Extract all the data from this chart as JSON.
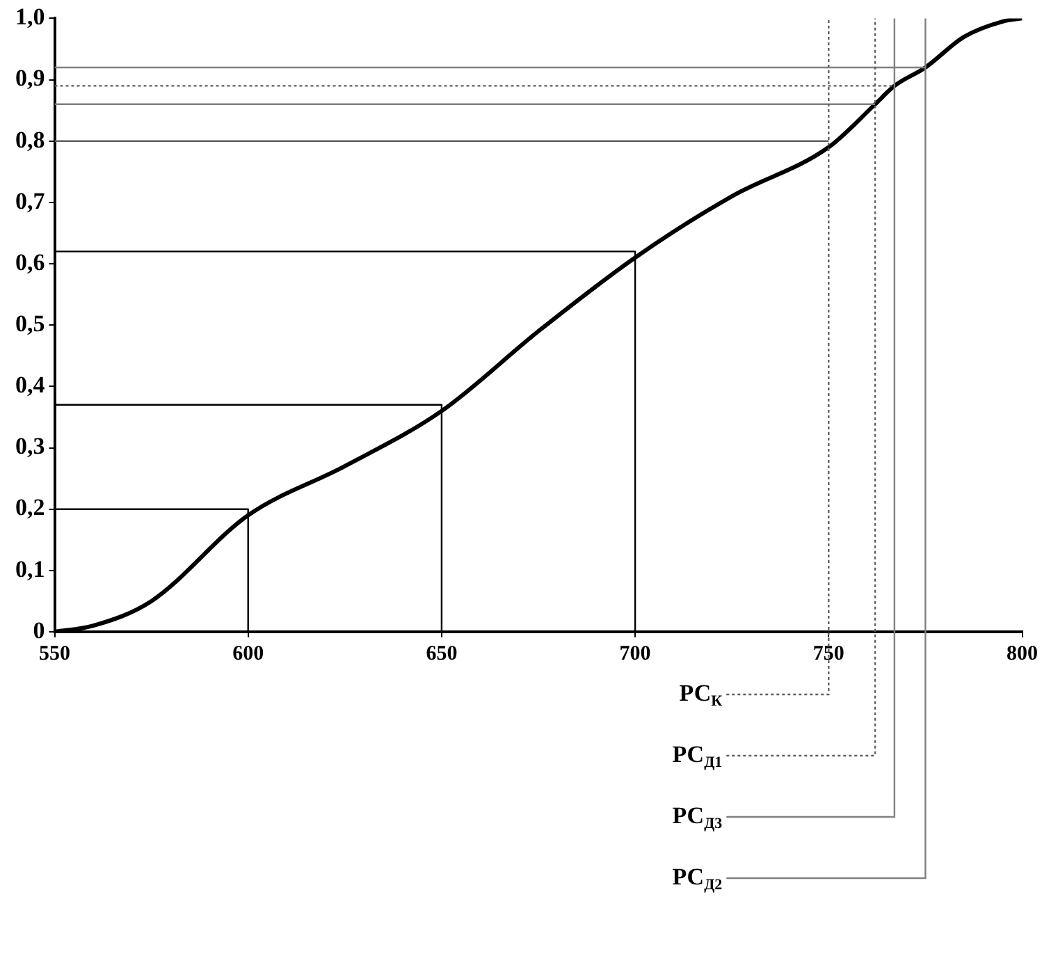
{
  "chart_data": {
    "type": "line",
    "x": [
      550,
      560,
      575,
      600,
      625,
      650,
      675,
      700,
      725,
      750,
      762,
      767,
      775,
      785,
      795,
      800
    ],
    "series": [
      {
        "color": "#000000",
        "values": [
          0,
          0.01,
          0.05,
          0.19,
          0.27,
          0.36,
          0.49,
          0.61,
          0.71,
          0.79,
          0.86,
          0.89,
          0.92,
          0.97,
          0.995,
          1.0
        ]
      },
      {
        "type": "line",
        "color": "#000000",
        "x": [
          550,
          600,
          600
        ],
        "values": [
          0.2,
          0.2,
          0
        ]
      },
      {
        "type": "line",
        "color": "#000000",
        "x": [
          550,
          650,
          650
        ],
        "values": [
          0.37,
          0.37,
          0
        ]
      },
      {
        "type": "line",
        "color": "#000000",
        "x": [
          550,
          700,
          700
        ],
        "values": [
          0.62,
          0.62,
          0
        ]
      },
      {
        "type": "line",
        "color": "#606060",
        "x": [
          550,
          750
        ],
        "values": [
          0.8,
          0.8
        ]
      },
      {
        "type": "line",
        "color": "#808080",
        "x": [
          550,
          762
        ],
        "values": [
          0.86,
          0.86
        ]
      },
      {
        "type": "line",
        "color": "#606060",
        "line_style": "dotted",
        "x": [
          550,
          767
        ],
        "values": [
          0.89,
          0.89
        ]
      },
      {
        "type": "line",
        "color": "#808080",
        "x": [
          550,
          775
        ],
        "values": [
          0.92,
          0.92
        ]
      }
    ],
    "xlim": [
      550,
      800
    ],
    "xticks": [
      550,
      600,
      650,
      700,
      750,
      800
    ],
    "ylim": [
      0,
      1
    ],
    "yticks": [
      0,
      {
        "value": 0.1,
        "label": "0,1"
      },
      {
        "value": 0.2,
        "label": "0,2"
      },
      {
        "value": 0.3,
        "label": "0,3"
      },
      {
        "value": 0.4,
        "label": "0,4"
      },
      {
        "value": 0.5,
        "label": "0,5"
      },
      {
        "value": 0.6,
        "label": "0,6"
      },
      {
        "value": 0.7,
        "label": "0,7"
      },
      {
        "value": 0.8,
        "label": "0,8"
      },
      {
        "value": 0.9,
        "label": "0,9"
      },
      {
        "value": 1.0,
        "label": "1,0"
      }
    ],
    "grid": false,
    "legend": false,
    "marker": "none",
    "line_style": "solid",
    "ref_lines": [
      {
        "axis": "x",
        "value": 750,
        "label": "РС$_{К}$",
        "color": "#606060",
        "line_style": "dotted"
      },
      {
        "axis": "x",
        "value": 762,
        "label": "РС$_{Д1}$",
        "color": "#606060",
        "line_style": "dotted"
      },
      {
        "axis": "x",
        "value": 767,
        "label": "РС$_{Д3}$",
        "color": "#808080",
        "line_style": "solid"
      },
      {
        "axis": "x",
        "value": 775,
        "label": "РС$_{Д2}$",
        "color": "#808080",
        "line_style": "solid"
      }
    ]
  }
}
